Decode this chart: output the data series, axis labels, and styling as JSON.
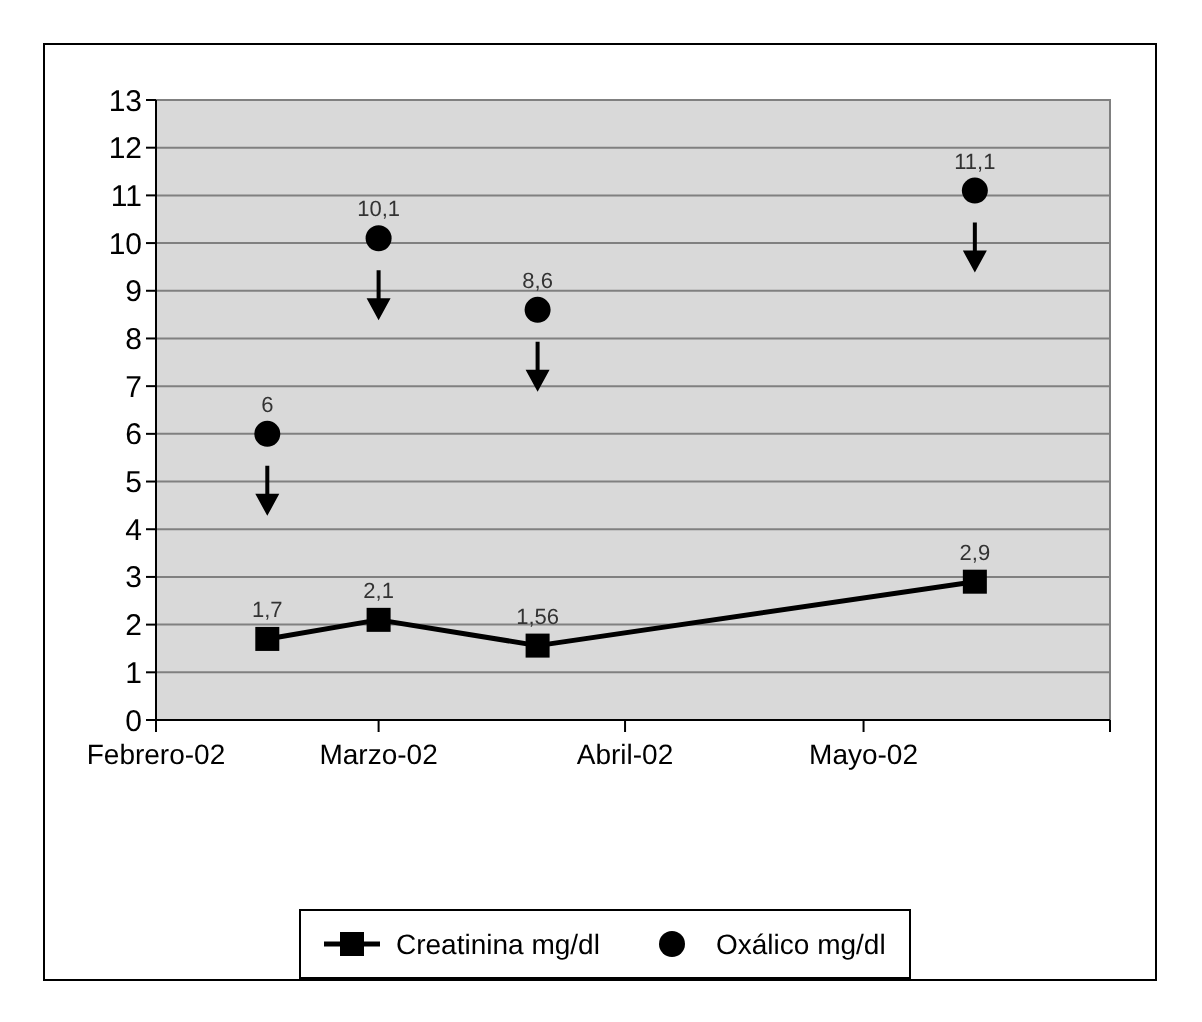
{
  "chart_data": {
    "type": "line",
    "xlim": [
      "2002-02-01",
      "2002-06-01"
    ],
    "xticks": [
      {
        "value": "2002-02-01",
        "label": "Febrero-02"
      },
      {
        "value": "2002-03-01",
        "label": "Marzo-02"
      },
      {
        "value": "2002-04-01",
        "label": "Abril-02"
      },
      {
        "value": "2002-05-01",
        "label": "Mayo-02"
      },
      {
        "value": "2002-06-01",
        "label": null
      }
    ],
    "ylim": [
      0,
      13
    ],
    "yticks": [
      0,
      1,
      2,
      3,
      4,
      5,
      6,
      7,
      8,
      9,
      10,
      11,
      12,
      13
    ],
    "grid": "y",
    "legend": "bottom",
    "series": [
      {
        "name": "Creatinina mg/dl",
        "marker": "square",
        "color": "#000000",
        "x": [
          "2002-02-15",
          "2002-03-01",
          "2002-03-21",
          "2002-05-15"
        ],
        "values": [
          1.7,
          2.1,
          1.56,
          2.9
        ],
        "value_labels": [
          "1,7",
          "2,1",
          "1,56",
          "2,9"
        ]
      },
      {
        "name": "Oxálico mg/dl",
        "type": "scatter",
        "marker": "circle",
        "color": "#000000",
        "x": [
          "2002-02-15",
          "2002-03-01",
          "2002-03-21",
          "2002-05-15"
        ],
        "values": [
          6,
          10.1,
          8.6,
          11.1
        ],
        "value_labels": [
          "6",
          "10,1",
          "8,6",
          "11,1"
        ]
      }
    ]
  }
}
